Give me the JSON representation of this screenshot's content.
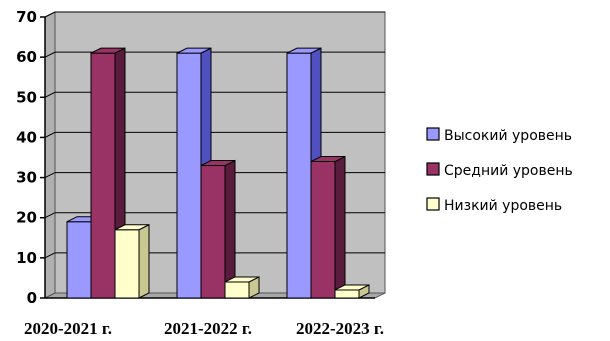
{
  "chart_data": {
    "type": "bar",
    "categories": [
      "2020-2021 г.",
      "2021-2022 г.",
      "2022-2023 г."
    ],
    "series": [
      {
        "name": "Высокий уровень",
        "values": [
          19,
          61,
          61
        ],
        "color": "#9999ff",
        "side_color": "#5050c0"
      },
      {
        "name": "Средний уровень",
        "values": [
          61,
          33,
          34
        ],
        "color": "#993366",
        "side_color": "#5a1c3c"
      },
      {
        "name": "Низкий уровень",
        "values": [
          17,
          4,
          2
        ],
        "color": "#ffffcc",
        "side_color": "#c8c890"
      }
    ],
    "title": "",
    "xlabel": "",
    "ylabel": "",
    "ylim": [
      0,
      70
    ],
    "yticks": [
      0,
      10,
      20,
      30,
      40,
      50,
      60,
      70
    ],
    "grid": true,
    "legend": "right",
    "wall_color": "#c0c0c0"
  }
}
